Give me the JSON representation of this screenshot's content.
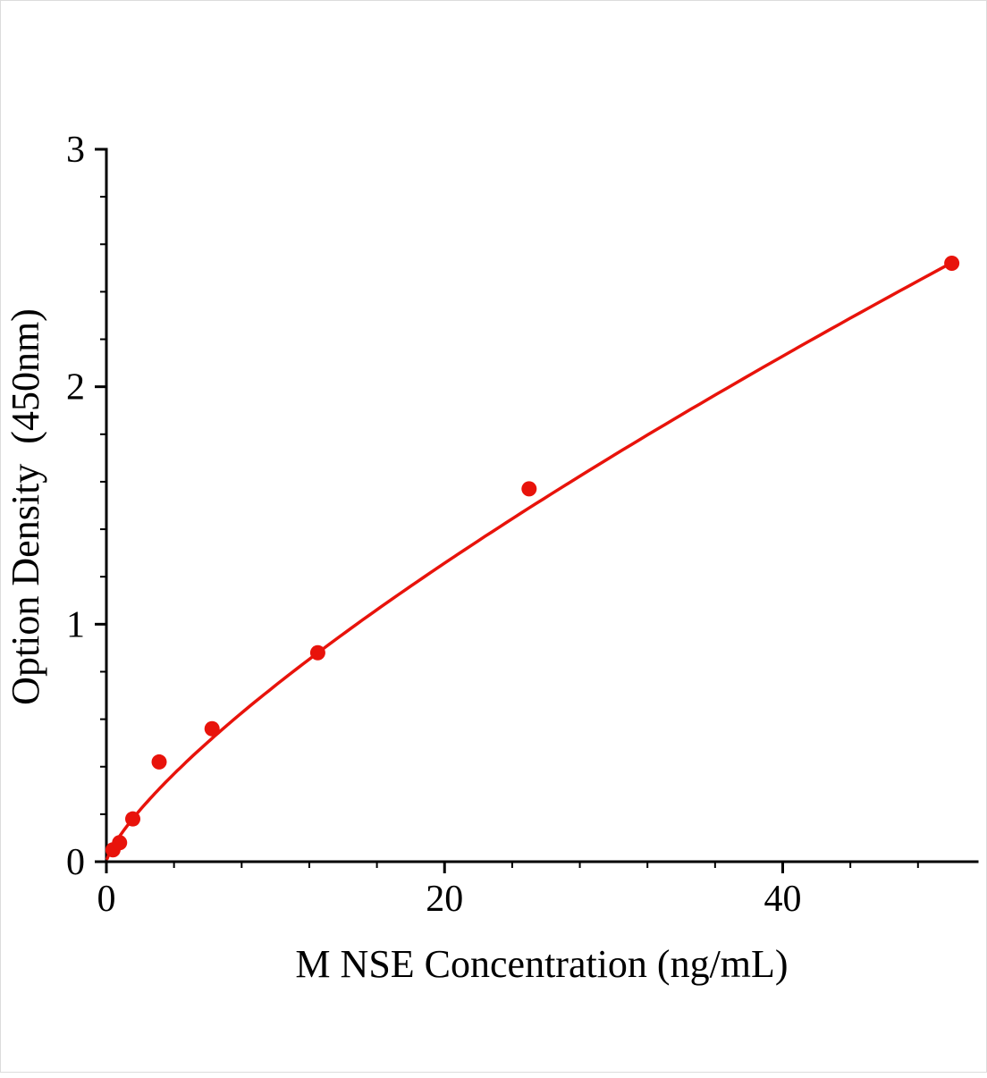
{
  "figure": {
    "background": "#ffffff",
    "border_color": "#dcdcdc"
  },
  "chart_data": {
    "type": "scatter",
    "title": "",
    "xlabel": "M NSE Concentration (ng/mL)",
    "ylabel": "Option Density  (450nm)",
    "x": [
      0.39,
      0.78,
      1.56,
      3.12,
      6.25,
      12.5,
      25,
      50
    ],
    "y": [
      0.05,
      0.08,
      0.18,
      0.42,
      0.56,
      0.88,
      1.57,
      2.52
    ],
    "fit_curve": {
      "model": "power",
      "a": 0.129,
      "b": 0.76,
      "x_start": 0.05,
      "x_end": 50
    },
    "xlim": [
      0,
      51.5
    ],
    "ylim": [
      0,
      3
    ],
    "xticks": [
      0,
      20,
      40
    ],
    "yticks": [
      0,
      1,
      2,
      3
    ],
    "x_minor_step": 4,
    "y_minor_step": 0.2,
    "grid": false,
    "legend": null,
    "marker_color": "#e8130b",
    "line_color": "#e8130b",
    "axis_color": "#000000",
    "marker_radius": 8.5,
    "curve_width": 3.5,
    "axis_width": 3
  }
}
